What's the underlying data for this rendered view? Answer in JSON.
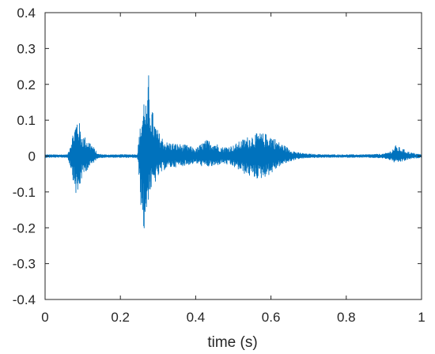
{
  "chart_data": {
    "type": "line",
    "title": "",
    "xlabel": "time (s)",
    "ylabel": "",
    "xlim": [
      0,
      1
    ],
    "ylim": [
      -0.4,
      0.4
    ],
    "x_ticks": [
      0,
      0.2,
      0.4,
      0.6,
      0.8,
      1
    ],
    "x_tick_labels": [
      "0",
      "0.2",
      "0.4",
      "0.6",
      "0.8",
      "1"
    ],
    "y_ticks": [
      0.4,
      0.3,
      0.2,
      0.1,
      0,
      -0.1,
      -0.2,
      -0.3,
      -0.4
    ],
    "y_tick_labels": [
      "0.4",
      "0.3",
      "0.2",
      "0.1",
      "0",
      "-0.1",
      "-0.2",
      "-0.3",
      "-0.4"
    ],
    "grid": false,
    "series": [
      {
        "color": "#0072BD",
        "x_start": 0,
        "x_end": 1,
        "envelope": {
          "t": [
            0.0,
            0.06,
            0.07,
            0.08,
            0.085,
            0.09,
            0.095,
            0.1,
            0.11,
            0.12,
            0.14,
            0.16,
            0.2,
            0.245,
            0.25,
            0.255,
            0.26,
            0.265,
            0.27,
            0.275,
            0.28,
            0.29,
            0.3,
            0.32,
            0.35,
            0.38,
            0.4,
            0.42,
            0.43,
            0.45,
            0.47,
            0.5,
            0.53,
            0.55,
            0.57,
            0.6,
            0.62,
            0.65,
            0.67,
            0.7,
            0.75,
            0.8,
            0.85,
            0.9,
            0.92,
            0.93,
            0.95,
            0.97,
            1.0
          ],
          "upper": [
            0.004,
            0.004,
            0.05,
            0.09,
            0.11,
            0.1,
            0.07,
            0.06,
            0.05,
            0.04,
            0.006,
            0.004,
            0.004,
            0.005,
            0.06,
            0.1,
            0.14,
            0.2,
            0.12,
            0.23,
            0.16,
            0.1,
            0.07,
            0.04,
            0.035,
            0.03,
            0.02,
            0.04,
            0.045,
            0.04,
            0.025,
            0.03,
            0.05,
            0.06,
            0.065,
            0.06,
            0.04,
            0.02,
            0.01,
            0.006,
            0.004,
            0.004,
            0.004,
            0.006,
            0.015,
            0.03,
            0.02,
            0.01,
            0.004
          ],
          "lower": [
            -0.004,
            -0.004,
            -0.04,
            -0.1,
            -0.12,
            -0.11,
            -0.07,
            -0.06,
            -0.04,
            -0.03,
            -0.005,
            -0.004,
            -0.004,
            -0.005,
            -0.06,
            -0.15,
            -0.2,
            -0.23,
            -0.15,
            -0.12,
            -0.1,
            -0.08,
            -0.06,
            -0.035,
            -0.03,
            -0.025,
            -0.02,
            -0.03,
            -0.03,
            -0.03,
            -0.02,
            -0.03,
            -0.05,
            -0.06,
            -0.065,
            -0.05,
            -0.03,
            -0.015,
            -0.008,
            -0.005,
            -0.004,
            -0.004,
            -0.004,
            -0.006,
            -0.012,
            -0.02,
            -0.015,
            -0.008,
            -0.004
          ]
        }
      }
    ]
  }
}
